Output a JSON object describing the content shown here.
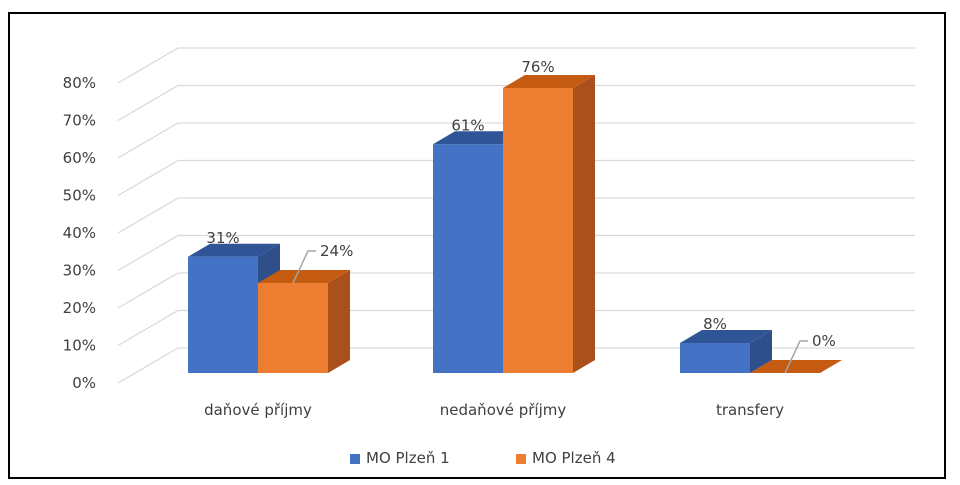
{
  "chart_data": {
    "type": "bar",
    "title": "",
    "xlabel": "",
    "ylabel": "",
    "categories": [
      "daňové příjmy",
      "nedaňové příjmy",
      "transfery"
    ],
    "series": [
      {
        "name": "MO Plzeň 1",
        "values": [
          31,
          61,
          8
        ],
        "labels": [
          "31%",
          "61%",
          "8%"
        ]
      },
      {
        "name": "MO Plzeň 4",
        "values": [
          24,
          76,
          0
        ],
        "labels": [
          "24%",
          "76%",
          "0%"
        ]
      }
    ],
    "ylim": [
      0,
      80
    ],
    "yticks": [
      "0%",
      "10%",
      "20%",
      "30%",
      "40%",
      "50%",
      "60%",
      "70%",
      "80%"
    ],
    "grid": true,
    "legend": "bottom",
    "style": "3d-clustered-column"
  },
  "colors": {
    "series1_front": "#4472C4",
    "series1_top": "#2F5597",
    "series1_side": "#2F4F8A",
    "series2_front": "#ED7D31",
    "series2_top": "#C55A11",
    "series2_side": "#A9501C",
    "grid": "#D9D9D9",
    "text": "#404040"
  }
}
